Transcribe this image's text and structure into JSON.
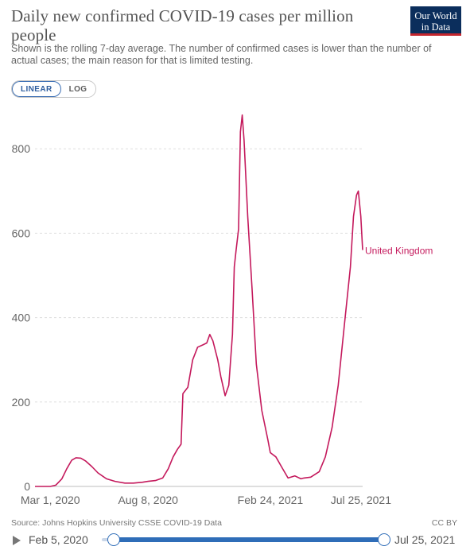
{
  "header": {
    "title": "Daily new confirmed COVID-19 cases per million people",
    "subtitle": "Shown is the rolling 7-day average. The number of confirmed cases is lower than the number of actual cases; the main reason for that is limited testing.",
    "logo_line1": "Our World",
    "logo_line2": "in Data"
  },
  "scale_toggle": {
    "linear_label": "LINEAR",
    "log_label": "LOG",
    "active": "LINEAR"
  },
  "chart_data": {
    "type": "line",
    "title": "Daily new confirmed COVID-19 cases per million people",
    "ylim": [
      0,
      880
    ],
    "yticks": [
      0,
      200,
      400,
      600,
      800
    ],
    "xticks": [
      "Mar 1, 2020",
      "Aug 8, 2020",
      "Feb 24, 2021",
      "Jul 25, 2021"
    ],
    "grid": "horizontal-dashed",
    "line_color": "#c4195c",
    "series": [
      {
        "name": "United Kingdom",
        "x": [
          "2020-02-05",
          "2020-03-01",
          "2020-03-10",
          "2020-03-20",
          "2020-03-28",
          "2020-04-05",
          "2020-04-12",
          "2020-04-20",
          "2020-04-28",
          "2020-05-08",
          "2020-05-18",
          "2020-06-01",
          "2020-06-15",
          "2020-07-01",
          "2020-07-15",
          "2020-07-30",
          "2020-08-08",
          "2020-08-20",
          "2020-09-01",
          "2020-09-10",
          "2020-09-18",
          "2020-09-25",
          "2020-10-01",
          "2020-10-04",
          "2020-10-12",
          "2020-10-20",
          "2020-10-28",
          "2020-11-05",
          "2020-11-12",
          "2020-11-17",
          "2020-11-22",
          "2020-11-30",
          "2020-12-05",
          "2020-12-12",
          "2020-12-18",
          "2020-12-24",
          "2020-12-27",
          "2020-12-30",
          "2021-01-03",
          "2021-01-06",
          "2021-01-09",
          "2021-01-12",
          "2021-01-18",
          "2021-01-25",
          "2021-02-01",
          "2021-02-10",
          "2021-02-20",
          "2021-02-24",
          "2021-03-05",
          "2021-03-15",
          "2021-03-25",
          "2021-04-05",
          "2021-04-15",
          "2021-04-20",
          "2021-05-01",
          "2021-05-15",
          "2021-05-25",
          "2021-06-05",
          "2021-06-15",
          "2021-06-25",
          "2021-07-05",
          "2021-07-10",
          "2021-07-15",
          "2021-07-18",
          "2021-07-22",
          "2021-07-25"
        ],
        "values": [
          0,
          0,
          3,
          18,
          42,
          62,
          68,
          67,
          60,
          47,
          32,
          18,
          12,
          8,
          8,
          10,
          12,
          14,
          20,
          42,
          70,
          88,
          100,
          220,
          235,
          300,
          330,
          335,
          340,
          360,
          345,
          300,
          260,
          215,
          240,
          360,
          520,
          560,
          610,
          840,
          880,
          820,
          640,
          470,
          290,
          180,
          110,
          80,
          70,
          45,
          20,
          25,
          18,
          20,
          22,
          35,
          70,
          140,
          240,
          380,
          520,
          640,
          690,
          700,
          640,
          560
        ]
      }
    ]
  },
  "footer": {
    "source": "Source: Johns Hopkins University CSSE COVID-19 Data",
    "license": "CC BY"
  },
  "timeline": {
    "start_label": "Feb 5, 2020",
    "end_label": "Jul 25, 2021"
  }
}
